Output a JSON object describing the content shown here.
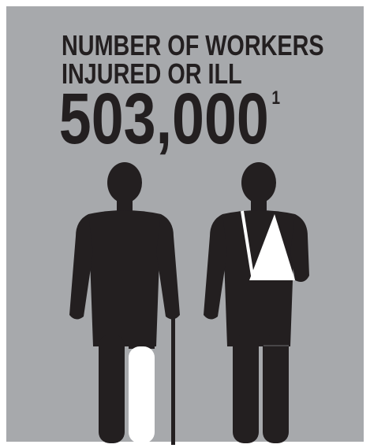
{
  "headline": {
    "lines": [
      "NUMBER OF WORKERS",
      "INJURED OR ILL"
    ],
    "number": "503,000",
    "footnote": "1"
  }
}
